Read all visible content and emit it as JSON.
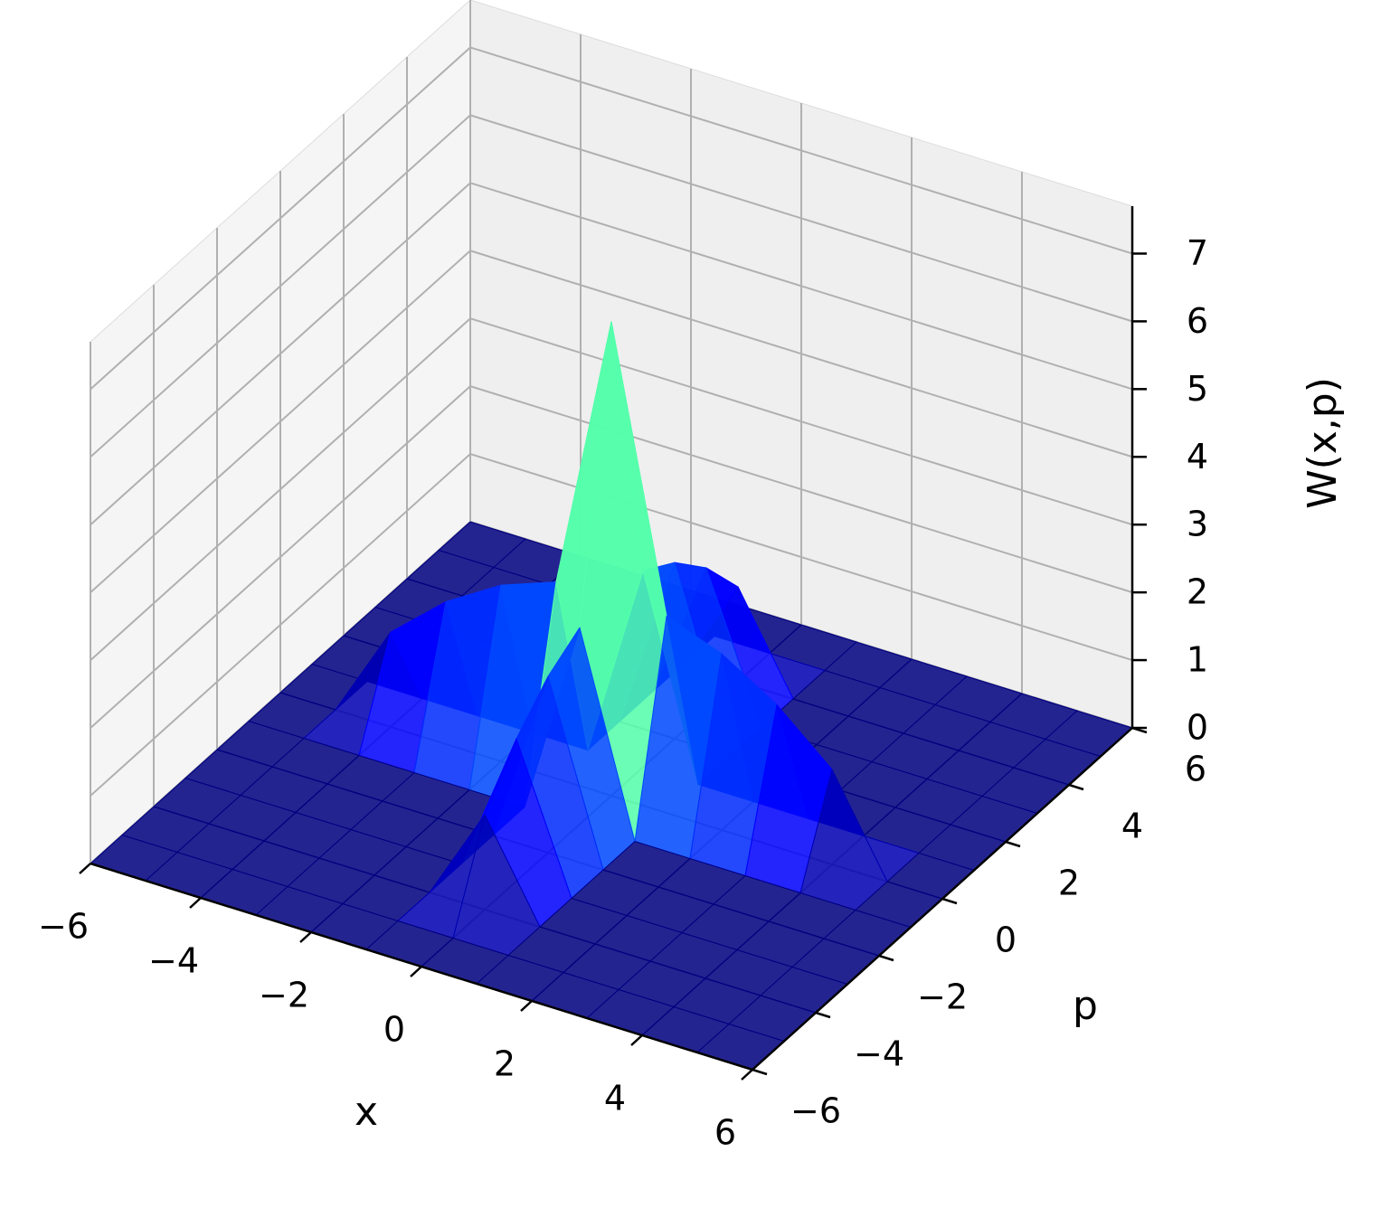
{
  "chart_data": {
    "type": "surface3d",
    "xlabel": "x",
    "ylabel": "p",
    "zlabel": "W(x,p)",
    "x": [
      -6,
      -5,
      -4,
      -3,
      -2,
      -1,
      0,
      1,
      2,
      3,
      4,
      5,
      6
    ],
    "y": [
      -6,
      -5,
      -4,
      -3,
      -2,
      -1,
      0,
      1,
      2,
      3,
      4,
      5,
      6
    ],
    "z": [
      [
        0,
        0,
        0,
        0,
        0,
        0,
        0,
        0,
        0,
        0,
        0,
        0,
        0
      ],
      [
        0,
        0,
        0,
        0,
        0,
        0,
        0,
        0,
        0,
        0,
        0,
        0,
        0
      ],
      [
        0,
        0,
        0,
        0,
        0,
        0,
        1.4,
        0,
        0,
        0,
        0,
        0,
        0
      ],
      [
        0,
        0,
        0,
        0,
        0,
        0,
        2.1,
        0,
        0,
        0,
        0,
        0,
        0
      ],
      [
        0,
        0,
        0,
        0,
        0,
        0,
        2.6,
        0,
        0,
        0,
        0,
        0,
        0
      ],
      [
        0,
        0,
        0,
        0,
        0,
        0,
        2.9,
        0,
        0,
        0,
        0,
        0,
        0
      ],
      [
        0,
        0,
        1.4,
        2.1,
        2.6,
        2.9,
        7,
        2.9,
        2.6,
        2.1,
        1.4,
        0,
        0
      ],
      [
        0,
        0,
        0,
        0,
        0,
        0,
        2.9,
        0,
        0,
        0,
        0,
        0,
        0
      ],
      [
        0,
        0,
        0,
        0,
        0,
        0,
        2.6,
        0,
        0,
        0,
        0,
        0,
        0
      ],
      [
        0,
        0,
        0,
        0,
        0,
        0,
        2.1,
        0,
        0,
        0,
        0,
        0,
        0
      ],
      [
        0,
        0,
        0,
        0,
        0,
        0,
        1.4,
        0,
        0,
        0,
        0,
        0,
        0
      ],
      [
        0,
        0,
        0,
        0,
        0,
        0,
        0,
        0,
        0,
        0,
        0,
        0,
        0
      ],
      [
        0,
        0,
        0,
        0,
        0,
        0,
        0,
        0,
        0,
        0,
        0,
        0,
        0
      ]
    ],
    "colormap": "jet",
    "xlim": [
      -6,
      6
    ],
    "ylim": [
      -6,
      6
    ],
    "zlim": [
      0,
      7.7
    ],
    "xticks": [
      {
        "value": -6,
        "label": "−6"
      },
      {
        "value": -4,
        "label": "−4"
      },
      {
        "value": -2,
        "label": "−2"
      },
      0,
      2,
      4,
      6
    ],
    "yticks": [
      {
        "value": -6,
        "label": "−6"
      },
      {
        "value": -4,
        "label": "−4"
      },
      {
        "value": -2,
        "label": "−2"
      },
      0,
      2,
      4,
      6
    ],
    "zticks": [
      0,
      1,
      2,
      3,
      4,
      5,
      6,
      7
    ],
    "grid": true
  }
}
